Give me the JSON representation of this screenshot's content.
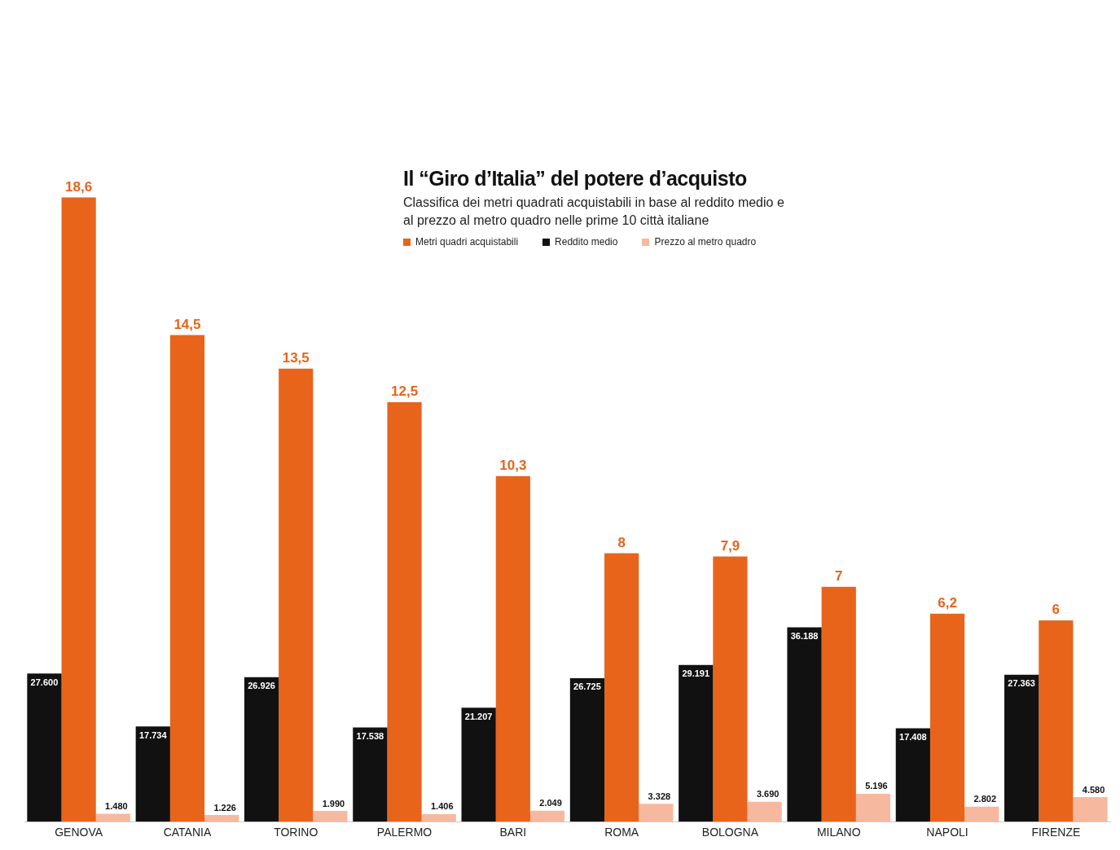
{
  "chart_data": {
    "type": "bar",
    "title": "Il “Giro d’Italia” del potere d’acquisto",
    "subtitle": "Classifica dei metri quadrati acquistabili in base al reddito medio e al prezzo al metro quadro nelle prime 10 città italiane",
    "categories": [
      "GENOVA",
      "CATANIA",
      "TORINO",
      "PALERMO",
      "BARI",
      "ROMA",
      "BOLOGNA",
      "MILANO",
      "NAPOLI",
      "FIRENZE"
    ],
    "series": [
      {
        "name": "Metri quadri acquistabili",
        "color": "#e8641b",
        "axis": "y",
        "values": [
          18.6,
          14.5,
          13.5,
          12.5,
          10.3,
          8,
          7.9,
          7,
          6.2,
          6
        ],
        "value_labels": [
          "18,6",
          "14,5",
          "13,5",
          "12,5",
          "10,3",
          "8",
          "7,9",
          "7",
          "6,2",
          "6"
        ]
      },
      {
        "name": "Reddito medio",
        "color": "#111111",
        "axis": "y2",
        "values": [
          27600,
          17734,
          26926,
          17538,
          21207,
          26725,
          29191,
          36188,
          17408,
          27363
        ],
        "value_labels": [
          "27.600",
          "17.734",
          "26.926",
          "17.538",
          "21.207",
          "26.725",
          "29.191",
          "36.188",
          "17.408",
          "27.363"
        ]
      },
      {
        "name": "Prezzo al metro quadro",
        "color": "#f6b99f",
        "axis": "y2",
        "values": [
          1480,
          1226,
          1990,
          1406,
          2049,
          3328,
          3690,
          5196,
          2802,
          4580
        ],
        "value_labels": [
          "1.480",
          "1.226",
          "1.990",
          "1.406",
          "2.049",
          "3.328",
          "3.690",
          "5.196",
          "2.802",
          "4.580"
        ]
      }
    ],
    "ylim": [
      0,
      24
    ],
    "y2lim": [
      0,
      150000
    ],
    "data_labels": true,
    "tick_labels": "x",
    "grid": false,
    "legend": "top"
  }
}
